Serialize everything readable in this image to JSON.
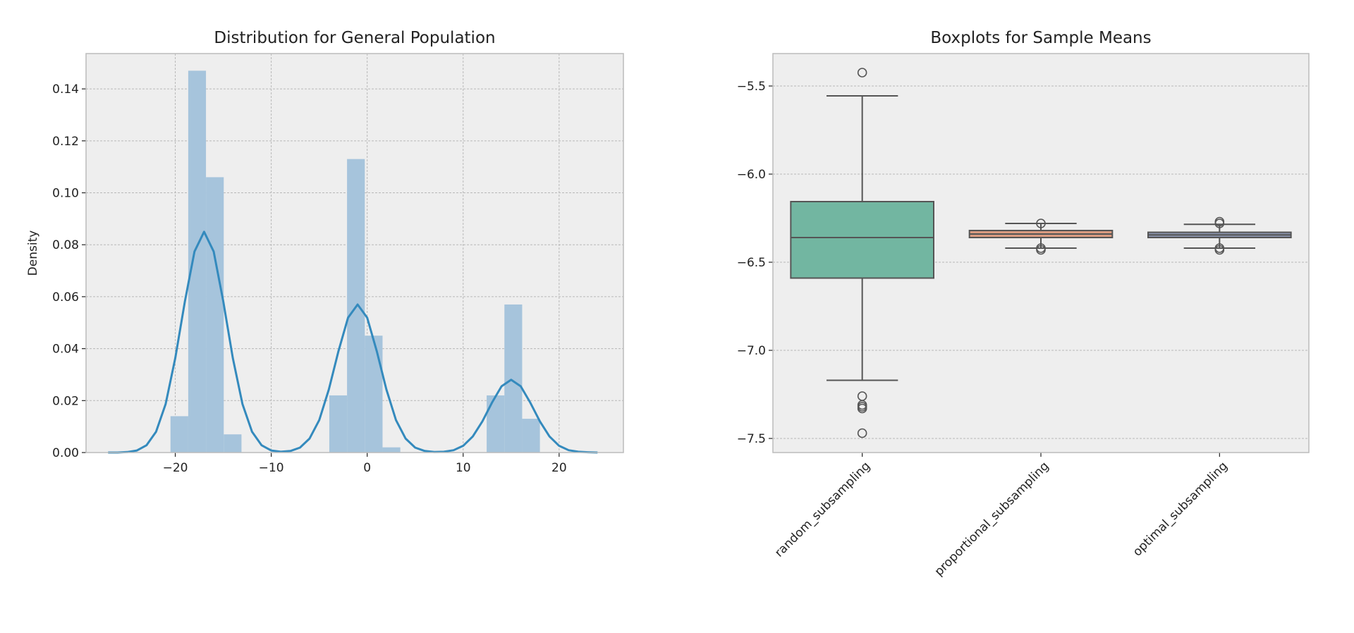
{
  "chart_data": [
    {
      "type": "histogram+kde",
      "title": "Distribution for General Population",
      "xlabel": "",
      "ylabel": "Density",
      "xlim": [
        -29.3,
        26.7
      ],
      "ylim": [
        0,
        0.1536
      ],
      "xticks": [
        -20,
        -10,
        0,
        10,
        20
      ],
      "xtick_labels": [
        "−20",
        "−10",
        "0",
        "10",
        "20"
      ],
      "yticks": [
        0,
        0.02,
        0.04,
        0.06,
        0.08,
        0.1,
        0.12,
        0.14
      ],
      "ytick_labels": [
        "0.00",
        "0.02",
        "0.04",
        "0.06",
        "0.08",
        "0.10",
        "0.12",
        "0.14"
      ],
      "grid": true,
      "bin_width": 1.85,
      "bars": [
        {
          "x0": -20.5,
          "value": 0.014
        },
        {
          "x0": -18.65,
          "value": 0.147
        },
        {
          "x0": -16.8,
          "value": 0.106
        },
        {
          "x0": -14.95,
          "value": 0.007
        },
        {
          "x0": -3.95,
          "value": 0.022
        },
        {
          "x0": -2.1,
          "value": 0.113
        },
        {
          "x0": -0.25,
          "value": 0.045
        },
        {
          "x0": 1.6,
          "value": 0.002
        },
        {
          "x0": 12.45,
          "value": 0.022
        },
        {
          "x0": 14.3,
          "value": 0.057
        },
        {
          "x0": 16.15,
          "value": 0.013
        }
      ],
      "kde": {
        "x": [
          -27,
          -26,
          -25,
          -24,
          -23,
          -22,
          -21,
          -20,
          -19,
          -18,
          -17,
          -16,
          -15,
          -14,
          -13,
          -12,
          -11,
          -10,
          -9,
          -8,
          -7,
          -6,
          -5,
          -4,
          -3,
          -2,
          -1,
          0,
          1,
          2,
          3,
          4,
          5,
          6,
          7,
          8,
          9,
          10,
          11,
          12,
          13,
          14,
          15,
          16,
          17,
          18,
          19,
          20,
          21,
          22,
          23,
          24
        ],
        "y": [
          0,
          0,
          0.0002,
          0.0008,
          0.0028,
          0.008,
          0.0187,
          0.0363,
          0.0582,
          0.0774,
          0.085,
          0.0774,
          0.0582,
          0.0363,
          0.0187,
          0.008,
          0.0028,
          0.0008,
          0.0003,
          0.0006,
          0.0019,
          0.0054,
          0.0125,
          0.0243,
          0.039,
          0.0519,
          0.057,
          0.0519,
          0.039,
          0.0243,
          0.0125,
          0.0054,
          0.0019,
          0.0006,
          0.0002,
          0.0003,
          0.0009,
          0.0026,
          0.0062,
          0.012,
          0.0192,
          0.0255,
          0.028,
          0.0255,
          0.0192,
          0.012,
          0.0062,
          0.0026,
          0.0009,
          0.0003,
          0.0001,
          0
        ]
      },
      "colors": {
        "bars": "#a6c4dc",
        "kde": "#348abd",
        "background": "#eeeeee"
      }
    },
    {
      "type": "boxplot",
      "title": "Boxplots for Sample Means",
      "xlabel": "",
      "ylabel": "",
      "ylim": [
        -7.58,
        -5.316
      ],
      "yticks": [
        -5.5,
        -6.0,
        -6.5,
        -7.0,
        -7.5
      ],
      "ytick_labels": [
        "−5.5",
        "−6.0",
        "−6.5",
        "−7.0",
        "−7.5"
      ],
      "grid": true,
      "categories": [
        "random_subsampling",
        "proportional_subsampling",
        "optimal_subsampling"
      ],
      "boxes": [
        {
          "whisker_low": -7.17,
          "q1": -6.59,
          "median": -6.36,
          "q3": -6.156,
          "whisker_high": -5.556,
          "outliers": [
            -5.424,
            -7.26,
            -7.31,
            -7.32,
            -7.33,
            -7.47
          ],
          "color": "#72b6a1"
        },
        {
          "whisker_low": -6.42,
          "q1": -6.36,
          "median": -6.34,
          "q3": -6.32,
          "whisker_high": -6.28,
          "outliers": [
            -6.28,
            -6.42,
            -6.43
          ],
          "color": "#d99a80"
        },
        {
          "whisker_low": -6.42,
          "q1": -6.36,
          "median": -6.345,
          "q3": -6.33,
          "whisker_high": -6.285,
          "outliers": [
            -6.27,
            -6.28,
            -6.42,
            -6.43
          ],
          "color": "#8a93ad"
        }
      ]
    }
  ]
}
